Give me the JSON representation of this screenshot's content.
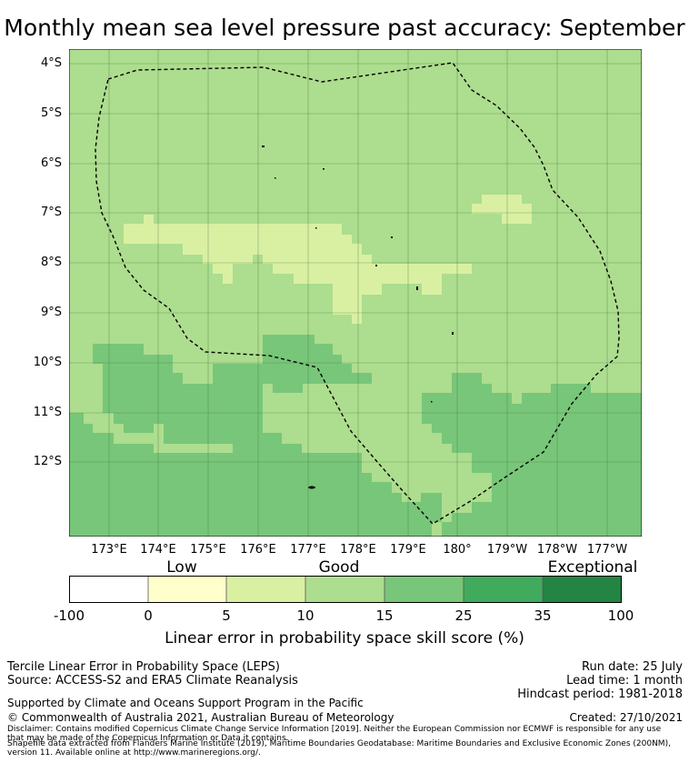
{
  "title": "Monthly mean sea level pressure past accuracy: September",
  "colors": {
    "low": "#ffffff",
    "b0_5": "#ffffcc",
    "b5_10": "#d9f0a3",
    "b10_15": "#addd8e",
    "b15_25": "#78c679",
    "b25_35": "#41ab5d",
    "b35_100": "#238443",
    "grid": "#3c6e3c",
    "boundary": "#000000"
  },
  "map": {
    "lat_labels": [
      "4°S",
      "5°S",
      "6°S",
      "7°S",
      "8°S",
      "9°S",
      "10°S",
      "11°S",
      "12°S"
    ],
    "lon_labels": [
      "173°E",
      "174°E",
      "175°E",
      "176°E",
      "177°E",
      "178°E",
      "179°E",
      "180°",
      "179°W",
      "178°W",
      "177°W"
    ]
  },
  "legend": {
    "categories": [
      "Low",
      "Good",
      "Exceptional"
    ],
    "ticks": [
      "-100",
      "0",
      "5",
      "10",
      "15",
      "25",
      "35",
      "100"
    ],
    "label": "Linear error in probability space skill score (%)"
  },
  "footer": {
    "line1": "Tercile Linear Error in Probability Space (LEPS)",
    "line2": "Source: ACCESS-S2 and ERA5 Climate Reanalysis",
    "support": "Supported by Climate and Oceans Support Program in the Pacific",
    "copyright": "© Commonwealth of Australia 2021, Australian Bureau of Meteorology",
    "disclaimer1": "Disclaimer: Contains modified Copernicus Climate Change Service Information [2019]. Neither the European Commission nor ECMWF is responsible for any use",
    "disclaimer2": "that may be made of the Copernicus Information or Data it contains.",
    "shapefile1": "Shapefile data extracted from Flanders Marine Institute (2019), Maritime Boundaries Geodatabase: Maritime Boundaries and Exclusive Economic Zones (200NM),",
    "shapefile2": "version 11. Available online at http://www.marineregions.org/.",
    "run_date": "Run date: 25 July",
    "lead_time": "Lead time: 1 month",
    "hindcast": "Hindcast period: 1981-2018",
    "created": "Created: 27/10/2021"
  }
}
